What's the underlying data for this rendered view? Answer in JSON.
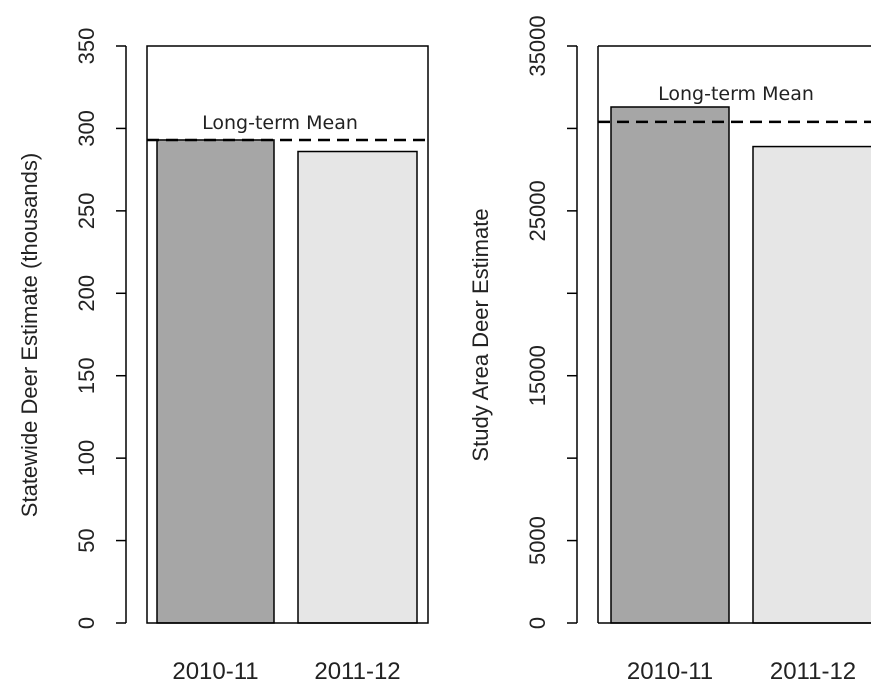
{
  "chart_data": [
    {
      "type": "bar",
      "categories": [
        "2010-11",
        "2011-12"
      ],
      "values": [
        293,
        286
      ],
      "ylabel": "Statewide Deer Estimate (thousands)",
      "xlabel": "",
      "ylim": [
        0,
        350
      ],
      "yticks": [
        "0",
        "50",
        "100",
        "150",
        "200",
        "250",
        "300",
        "350"
      ],
      "bar_colors": [
        "#a6a6a6",
        "#e6e6e6"
      ],
      "reference_line": {
        "label": "Long-term Mean",
        "value": 293,
        "style": "dashed"
      }
    },
    {
      "type": "bar",
      "categories": [
        "2010-11",
        "2011-12"
      ],
      "values": [
        31300,
        28900
      ],
      "ylabel": "Study Area Deer Estimate",
      "xlabel": "",
      "ylim": [
        0,
        35000
      ],
      "yticks": [
        "0",
        "5000",
        "15000",
        "25000",
        "35000"
      ],
      "yticks_unlabeled": [
        10000,
        20000,
        30000
      ],
      "bar_colors": [
        "#a6a6a6",
        "#e6e6e6"
      ],
      "reference_line": {
        "label": "Long-term Mean",
        "value": 30400,
        "style": "dashed"
      }
    }
  ]
}
